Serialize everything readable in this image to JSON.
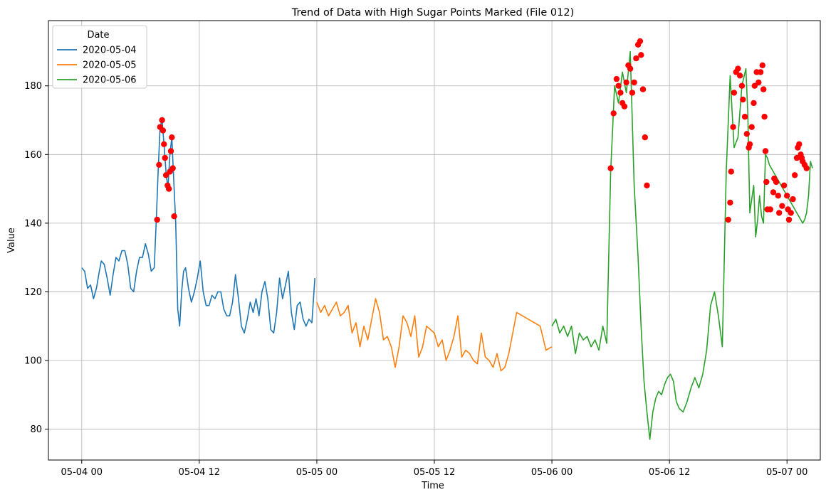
{
  "chart_data": {
    "type": "line",
    "title": "Trend of Data with High Sugar Points Marked (File 012)",
    "xlabel": "Time",
    "ylabel": "Value",
    "x_unit": "hours since 2020-05-04 00:00",
    "xlim": [
      -1.7,
      37.7
    ],
    "ylim": [
      71,
      199
    ],
    "x_ticks": [
      {
        "value": 0,
        "label": "05-04 00"
      },
      {
        "value": 6,
        "label": "05-04 12"
      },
      {
        "value": 12,
        "label": "05-05 00"
      },
      {
        "value": 18,
        "label": "05-05 12"
      },
      {
        "value": 24,
        "label": "05-06 00"
      },
      {
        "value": 30,
        "label": "05-06 12"
      },
      {
        "value": 36,
        "label": "05-07 00"
      }
    ],
    "y_ticks": [
      80,
      100,
      120,
      140,
      160,
      180
    ],
    "grid": true,
    "legend": {
      "title": "Date",
      "position": "top-left"
    },
    "high_marker_color": "#ff0000",
    "series": [
      {
        "name": "2020-05-04",
        "color": "#1f77b4",
        "x": [
          0,
          0.15,
          0.3,
          0.45,
          0.6,
          0.75,
          0.9,
          1.0,
          1.15,
          1.3,
          1.45,
          1.6,
          1.75,
          1.9,
          2.05,
          2.2,
          2.35,
          2.5,
          2.65,
          2.8,
          2.95,
          3.1,
          3.25,
          3.4,
          3.55,
          3.7,
          3.8,
          3.9,
          4.0,
          4.1,
          4.2,
          4.3,
          4.4,
          4.5,
          4.6,
          4.7,
          4.8,
          4.9,
          5.0,
          5.1,
          5.2,
          5.3,
          5.45,
          5.6,
          5.75,
          5.9,
          6.05,
          6.2,
          6.35,
          6.5,
          6.65,
          6.8,
          6.95,
          7.1,
          7.25,
          7.4,
          7.55,
          7.7,
          7.85,
          8.0,
          8.15,
          8.3,
          8.45,
          8.6,
          8.75,
          8.9,
          9.05,
          9.2,
          9.35,
          9.5,
          9.65,
          9.8,
          9.95,
          10.1,
          10.25,
          10.4,
          10.55,
          10.7,
          10.85,
          11.0,
          11.15,
          11.3,
          11.45,
          11.6,
          11.75,
          11.9
        ],
        "y": [
          127,
          126,
          121,
          122,
          118,
          121,
          126,
          129,
          128,
          124,
          119,
          125,
          130,
          129,
          132,
          132,
          128,
          121,
          120,
          126,
          130,
          130,
          134,
          131,
          126,
          127,
          140,
          155,
          168,
          170,
          163,
          155,
          150,
          160,
          165,
          152,
          140,
          115,
          110,
          120,
          126,
          127,
          121,
          117,
          120,
          124,
          129,
          120,
          116,
          116,
          119,
          118,
          120,
          120,
          115,
          113,
          113,
          117,
          125,
          118,
          110,
          108,
          112,
          117,
          114,
          118,
          113,
          120,
          123,
          118,
          109,
          108,
          114,
          124,
          118,
          122,
          126,
          114,
          109,
          116,
          117,
          112,
          110,
          112,
          111,
          124
        ]
      },
      {
        "name": "2020-05-05",
        "color": "#ff7f0e",
        "x": [
          12.0,
          12.2,
          12.4,
          12.6,
          12.8,
          13.0,
          13.2,
          13.4,
          13.6,
          13.8,
          14.0,
          14.2,
          14.4,
          14.6,
          14.8,
          15.0,
          15.2,
          15.4,
          15.6,
          15.8,
          16.0,
          16.2,
          16.4,
          16.6,
          16.8,
          17.0,
          17.2,
          17.4,
          17.6,
          17.8,
          18.0,
          18.2,
          18.4,
          18.6,
          18.8,
          19.0,
          19.2,
          19.4,
          19.6,
          19.8,
          20.0,
          20.2,
          20.4,
          20.6,
          20.8,
          21.0,
          21.2,
          21.4,
          21.6,
          21.8,
          22.0,
          22.2,
          23.4,
          23.7,
          24.0
        ],
        "y": [
          117,
          114,
          116,
          113,
          115,
          117,
          113,
          114,
          116,
          108,
          111,
          104,
          110,
          106,
          112,
          118,
          114,
          106,
          107,
          104,
          98,
          104,
          113,
          111,
          107,
          113,
          101,
          104,
          110,
          109,
          108,
          104,
          106,
          100,
          103,
          107,
          113,
          101,
          103,
          102,
          100,
          99,
          108,
          101,
          100,
          98,
          102,
          97,
          98,
          102,
          108,
          114,
          110,
          103,
          104
        ]
      },
      {
        "name": "2020-05-06",
        "color": "#2ca02c",
        "x": [
          24.0,
          24.2,
          24.4,
          24.6,
          24.8,
          25.0,
          25.2,
          25.4,
          25.6,
          25.8,
          26.0,
          26.2,
          26.4,
          26.6,
          26.8,
          27.0,
          27.2,
          27.4,
          27.6,
          27.8,
          28.0,
          28.2,
          28.4,
          28.55,
          28.7,
          28.85,
          29.0,
          29.15,
          29.3,
          29.45,
          29.6,
          29.75,
          29.9,
          30.05,
          30.2,
          30.35,
          30.5,
          30.7,
          30.9,
          31.1,
          31.3,
          31.5,
          31.7,
          31.9,
          32.1,
          32.3,
          32.5,
          32.7,
          32.9,
          33.1,
          33.3,
          33.5,
          33.7,
          33.9,
          34.0,
          34.1,
          34.2,
          34.3,
          34.4,
          34.5,
          34.6,
          34.7,
          34.8,
          34.9,
          35.0,
          35.1,
          35.2,
          35.3,
          35.4,
          35.5,
          35.6,
          35.7,
          35.8,
          35.9,
          36.0,
          36.1,
          36.2,
          36.3,
          36.4,
          36.5,
          36.6,
          36.7,
          36.8,
          36.9,
          37.0,
          37.1,
          37.2,
          37.3
        ],
        "y": [
          110,
          112,
          108,
          110,
          107,
          110,
          102,
          108,
          106,
          107,
          104,
          106,
          103,
          110,
          105,
          155,
          180,
          175,
          184,
          178,
          190,
          151,
          130,
          110,
          94,
          85,
          77,
          85,
          89,
          91,
          90,
          93,
          95,
          96,
          94,
          88,
          86,
          85,
          88,
          92,
          95,
          92,
          96,
          103,
          116,
          120,
          113,
          104,
          155,
          183,
          162,
          165,
          180,
          185,
          172,
          143,
          147,
          151,
          136,
          141,
          148,
          142,
          140,
          160,
          159,
          157,
          156,
          155,
          154,
          153,
          152,
          151,
          150,
          149,
          148,
          147,
          146,
          145,
          144,
          143,
          142,
          141,
          140,
          141,
          143,
          148,
          158,
          156
        ]
      }
    ],
    "high_points": [
      {
        "x": 3.85,
        "y": 141
      },
      {
        "x": 3.95,
        "y": 157
      },
      {
        "x": 4.0,
        "y": 168
      },
      {
        "x": 4.1,
        "y": 170
      },
      {
        "x": 4.15,
        "y": 167
      },
      {
        "x": 4.2,
        "y": 163
      },
      {
        "x": 4.25,
        "y": 159
      },
      {
        "x": 4.3,
        "y": 154
      },
      {
        "x": 4.38,
        "y": 151
      },
      {
        "x": 4.45,
        "y": 150
      },
      {
        "x": 4.55,
        "y": 161
      },
      {
        "x": 4.6,
        "y": 165
      },
      {
        "x": 4.65,
        "y": 156
      },
      {
        "x": 4.72,
        "y": 142
      },
      {
        "x": 4.5,
        "y": 155
      },
      {
        "x": 27.0,
        "y": 156
      },
      {
        "x": 27.15,
        "y": 172
      },
      {
        "x": 27.3,
        "y": 182
      },
      {
        "x": 27.4,
        "y": 180
      },
      {
        "x": 27.5,
        "y": 178
      },
      {
        "x": 27.6,
        "y": 175
      },
      {
        "x": 27.7,
        "y": 174
      },
      {
        "x": 27.8,
        "y": 181
      },
      {
        "x": 27.9,
        "y": 186
      },
      {
        "x": 28.0,
        "y": 185
      },
      {
        "x": 28.1,
        "y": 178
      },
      {
        "x": 28.2,
        "y": 181
      },
      {
        "x": 28.3,
        "y": 188
      },
      {
        "x": 28.4,
        "y": 192
      },
      {
        "x": 28.5,
        "y": 193
      },
      {
        "x": 28.55,
        "y": 189
      },
      {
        "x": 28.65,
        "y": 179
      },
      {
        "x": 28.75,
        "y": 165
      },
      {
        "x": 28.85,
        "y": 151
      },
      {
        "x": 33.0,
        "y": 141
      },
      {
        "x": 33.1,
        "y": 146
      },
      {
        "x": 33.15,
        "y": 155
      },
      {
        "x": 33.25,
        "y": 168
      },
      {
        "x": 33.3,
        "y": 178
      },
      {
        "x": 33.4,
        "y": 184
      },
      {
        "x": 33.5,
        "y": 185
      },
      {
        "x": 33.6,
        "y": 183
      },
      {
        "x": 33.7,
        "y": 180
      },
      {
        "x": 33.75,
        "y": 176
      },
      {
        "x": 33.85,
        "y": 171
      },
      {
        "x": 33.95,
        "y": 166
      },
      {
        "x": 34.05,
        "y": 162
      },
      {
        "x": 34.1,
        "y": 163
      },
      {
        "x": 34.2,
        "y": 168
      },
      {
        "x": 34.3,
        "y": 175
      },
      {
        "x": 34.35,
        "y": 180
      },
      {
        "x": 34.45,
        "y": 184
      },
      {
        "x": 34.55,
        "y": 181
      },
      {
        "x": 34.65,
        "y": 184
      },
      {
        "x": 34.75,
        "y": 186
      },
      {
        "x": 34.8,
        "y": 179
      },
      {
        "x": 34.85,
        "y": 171
      },
      {
        "x": 34.9,
        "y": 161
      },
      {
        "x": 34.95,
        "y": 152
      },
      {
        "x": 35.0,
        "y": 144
      },
      {
        "x": 35.15,
        "y": 144
      },
      {
        "x": 35.3,
        "y": 149
      },
      {
        "x": 35.35,
        "y": 153
      },
      {
        "x": 35.45,
        "y": 152
      },
      {
        "x": 35.55,
        "y": 148
      },
      {
        "x": 35.6,
        "y": 143
      },
      {
        "x": 35.75,
        "y": 145
      },
      {
        "x": 35.85,
        "y": 151
      },
      {
        "x": 36.0,
        "y": 148
      },
      {
        "x": 36.05,
        "y": 144
      },
      {
        "x": 36.1,
        "y": 141
      },
      {
        "x": 36.2,
        "y": 143
      },
      {
        "x": 36.3,
        "y": 147
      },
      {
        "x": 36.4,
        "y": 154
      },
      {
        "x": 36.5,
        "y": 159
      },
      {
        "x": 36.55,
        "y": 162
      },
      {
        "x": 36.62,
        "y": 163
      },
      {
        "x": 36.7,
        "y": 160
      },
      {
        "x": 36.8,
        "y": 158
      },
      {
        "x": 36.9,
        "y": 157
      },
      {
        "x": 37.0,
        "y": 156
      },
      {
        "x": 36.75,
        "y": 159
      }
    ]
  }
}
